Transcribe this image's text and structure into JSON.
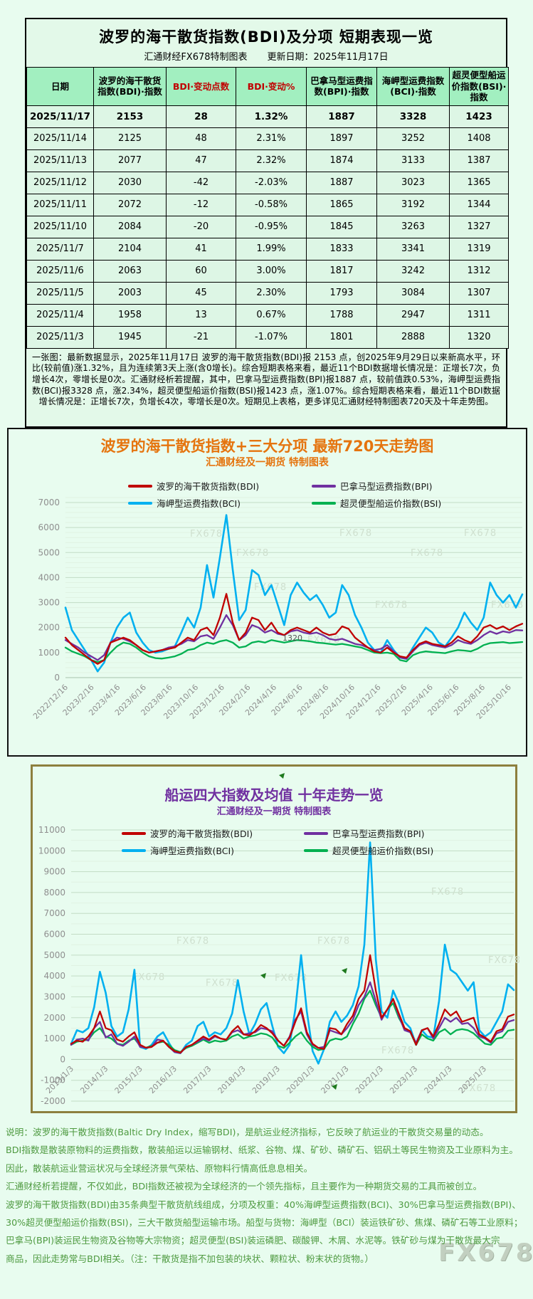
{
  "page": {
    "watermark": "FX678"
  },
  "table_section": {
    "title": "波罗的海干散货指数(BDI)及分项 短期表现一览",
    "subtitle_left": "汇通财经FX678特制图表",
    "subtitle_right": "更新日期：2025年11月17日",
    "columns": [
      "日期",
      "波罗的海干散货指数(BDI)·指数",
      "BDI·变动点数",
      "BDI·变动%",
      "巴拿马型运费指数(BPI)·指数",
      "海岬型运费指数(BCI)·指数",
      "超灵便型船运价指数(BSI)·指数"
    ],
    "red_columns": [
      2,
      3
    ],
    "rows": [
      [
        "2025/11/17",
        "2153",
        "28",
        "1.32%",
        "1887",
        "3328",
        "1423"
      ],
      [
        "2025/11/14",
        "2125",
        "48",
        "2.31%",
        "1897",
        "3252",
        "1408"
      ],
      [
        "2025/11/13",
        "2077",
        "47",
        "2.32%",
        "1874",
        "3133",
        "1387"
      ],
      [
        "2025/11/12",
        "2030",
        "-42",
        "-2.03%",
        "1887",
        "3023",
        "1365"
      ],
      [
        "2025/11/11",
        "2072",
        "-12",
        "-0.58%",
        "1865",
        "3192",
        "1344"
      ],
      [
        "2025/11/10",
        "2084",
        "-20",
        "-0.95%",
        "1845",
        "3263",
        "1327"
      ],
      [
        "2025/11/7",
        "2104",
        "41",
        "1.99%",
        "1833",
        "3341",
        "1319"
      ],
      [
        "2025/11/6",
        "2063",
        "60",
        "3.00%",
        "1817",
        "3242",
        "1312"
      ],
      [
        "2025/11/5",
        "2003",
        "45",
        "2.30%",
        "1793",
        "3084",
        "1307"
      ],
      [
        "2025/11/4",
        "1958",
        "13",
        "0.67%",
        "1788",
        "2947",
        "1311"
      ],
      [
        "2025/11/3",
        "1945",
        "-21",
        "-1.07%",
        "1801",
        "2888",
        "1320"
      ]
    ],
    "summary": "一张图：最新数据显示，2025年11月17日 波罗的海干散货指数(BDI)报 2153 点，创2025年9月29日以来新高水平，环比(较前值)涨1.32%，且为连续第3天上涨(含0增长)。综合短期表格来看，最近11个BDI数据增长情况是：正增长7次，负增长4次，零增长是0次。汇通财经析若提醒，其中，巴拿马型运费指数(BPI)报1887 点，较前值跌0.53%，海岬型运费指数(BCI)报3328 点，涨2.34%，超灵便型船运价指数(BSI)报1423 点，涨1.07%。综合短期表格来看，最近11个BDI数据增长情况是：正增长7次，负增长4次，零增长是0次。短期见上表格，更多详见汇通财经特制图表720天及十年走势图。"
  },
  "chart_data": [
    {
      "type": "line",
      "title": "波罗的海干散货指数+三大分项  最新720天走势图",
      "subtitle": "汇通财经及一期货  特制图表",
      "title_color": "#e5740e",
      "xlabel": "",
      "ylabel": "",
      "ylim": [
        0,
        7300
      ],
      "yticks": [
        0,
        1000,
        2000,
        3000,
        4000,
        5000,
        6000,
        7000
      ],
      "grid": true,
      "legend_position": "top",
      "annotation": "1320",
      "x_labels": [
        "2022/12/16",
        "2023/2/16",
        "2023/4/16",
        "2023/6/16",
        "2023/8/16",
        "2023/10/16",
        "2023/12/16",
        "2024/2/16",
        "2024/4/16",
        "2024/6/16",
        "2024/8/16",
        "2024/10/16",
        "2024/12/16",
        "2025/2/16",
        "2025/4/16",
        "2025/6/16",
        "2025/8/16",
        "2025/10/16"
      ],
      "series": [
        {
          "key": "BDI",
          "name": "波罗的海干散货指数(BDI)",
          "color": "#c00000",
          "values": [
            1600,
            1300,
            1100,
            900,
            700,
            550,
            700,
            1400,
            1500,
            1600,
            1500,
            1300,
            1100,
            1000,
            1050,
            1100,
            1150,
            1200,
            1400,
            1600,
            1500,
            1900,
            2000,
            1700,
            2400,
            3350,
            2200,
            1500,
            1800,
            2400,
            2300,
            1900,
            2200,
            1800,
            1700,
            1900,
            2000,
            1900,
            1800,
            2000,
            1800,
            1700,
            1750,
            2050,
            1950,
            1600,
            1400,
            1200,
            1050,
            1000,
            1200,
            1000,
            850,
            800,
            1100,
            1350,
            1450,
            1350,
            1300,
            1250,
            1400,
            1650,
            1500,
            1400,
            1650,
            2000,
            2100,
            1950,
            2050,
            1900,
            2050,
            2153
          ]
        },
        {
          "key": "BPI",
          "name": "巴拿马型运费指数(BPI)",
          "color": "#7030a0",
          "values": [
            1500,
            1350,
            1200,
            1000,
            850,
            700,
            900,
            1400,
            1600,
            1550,
            1450,
            1300,
            1100,
            1000,
            1050,
            1100,
            1200,
            1250,
            1350,
            1500,
            1450,
            1650,
            1700,
            1550,
            2000,
            2500,
            2100,
            1500,
            1700,
            2100,
            2000,
            1800,
            1900,
            1750,
            1700,
            1850,
            1900,
            1800,
            1750,
            1800,
            1700,
            1550,
            1500,
            1550,
            1450,
            1350,
            1300,
            1200,
            1100,
            1150,
            1300,
            1050,
            800,
            750,
            1050,
            1300,
            1400,
            1300,
            1250,
            1200,
            1300,
            1500,
            1400,
            1350,
            1500,
            1700,
            1850,
            1750,
            1850,
            1800,
            1900,
            1887
          ]
        },
        {
          "key": "BCI",
          "name": "海岬型运费指数(BCI)",
          "color": "#00b0f0",
          "values": [
            2800,
            1900,
            1500,
            1100,
            700,
            250,
            600,
            1400,
            2000,
            2400,
            2600,
            1800,
            1400,
            1100,
            1000,
            1050,
            1150,
            1250,
            1800,
            2400,
            2000,
            2800,
            4500,
            3200,
            4800,
            6500,
            4300,
            2300,
            2700,
            4300,
            4100,
            3300,
            3700,
            2900,
            2100,
            3300,
            3800,
            3400,
            3100,
            3300,
            2900,
            2400,
            2600,
            3700,
            3300,
            2500,
            2000,
            1400,
            1100,
            1000,
            1500,
            1100,
            800,
            750,
            1200,
            1600,
            2000,
            1800,
            1400,
            1250,
            1600,
            2000,
            2600,
            2200,
            1900,
            2400,
            3800,
            3300,
            3000,
            3300,
            2800,
            3328
          ]
        },
        {
          "key": "BSI",
          "name": "超灵便型船运价指数(BSI)",
          "color": "#00b050",
          "values": [
            1200,
            1050,
            950,
            850,
            700,
            620,
            700,
            1000,
            1250,
            1400,
            1350,
            1200,
            1000,
            850,
            780,
            760,
            800,
            850,
            950,
            1100,
            1150,
            1300,
            1400,
            1350,
            1450,
            1500,
            1400,
            1200,
            1250,
            1400,
            1450,
            1400,
            1500,
            1450,
            1400,
            1450,
            1500,
            1480,
            1450,
            1400,
            1380,
            1350,
            1320,
            1350,
            1300,
            1250,
            1200,
            1100,
            1000,
            980,
            1000,
            950,
            700,
            650,
            900,
            1000,
            1050,
            1020,
            1000,
            980,
            1050,
            1100,
            1080,
            1050,
            1150,
            1300,
            1380,
            1400,
            1420,
            1380,
            1400,
            1423
          ]
        }
      ]
    },
    {
      "type": "line",
      "title": "船运四大指数及均值 十年走势一览",
      "subtitle": "汇通财经及一期货 特制图表",
      "title_color": "#7030a0",
      "xlabel": "",
      "ylabel": "",
      "ylim": [
        -2000,
        11000
      ],
      "yticks": [
        -2000,
        -1000,
        0,
        1000,
        2000,
        3000,
        4000,
        5000,
        6000,
        7000,
        8000,
        9000,
        10000,
        11000
      ],
      "grid": true,
      "legend_position": "top",
      "x_labels": [
        "2013/1/3",
        "2014/1/3",
        "2015/1/3",
        "2016/1/3",
        "2017/1/3",
        "2018/1/3",
        "2019/1/3",
        "2020/1/3",
        "2021/1/3",
        "2022/1/3",
        "2023/1/3",
        "2024/1/3",
        "2025/1/3"
      ],
      "series": [
        {
          "key": "BDI",
          "name": "波罗的海干散货指数(BDI)",
          "color": "#c00000",
          "values": [
            750,
            900,
            850,
            1100,
            1500,
            2300,
            1500,
            1400,
            950,
            850,
            1100,
            1300,
            700,
            560,
            600,
            800,
            900,
            600,
            400,
            320,
            600,
            700,
            900,
            1100,
            950,
            1150,
            1000,
            950,
            1350,
            1600,
            1200,
            1150,
            1350,
            1650,
            1500,
            1250,
            900,
            650,
            1050,
            1800,
            2450,
            1300,
            750,
            550,
            500,
            1500,
            1450,
            1200,
            1700,
            2100,
            2900,
            3300,
            5000,
            3300,
            2000,
            2400,
            2900,
            2200,
            1500,
            1350,
            700,
            1400,
            1500,
            1100,
            1700,
            2400,
            2100,
            2300,
            1800,
            1900,
            2000,
            1200,
            1050,
            850,
            1350,
            1450,
            2050,
            2153
          ]
        },
        {
          "key": "BPI",
          "name": "巴拿马型运费指数(BPI)",
          "color": "#7030a0",
          "values": [
            700,
            950,
            1000,
            900,
            1500,
            1800,
            1050,
            1200,
            750,
            650,
            850,
            1100,
            600,
            560,
            600,
            950,
            900,
            600,
            350,
            300,
            600,
            700,
            850,
            1000,
            900,
            1100,
            1000,
            950,
            1300,
            1400,
            1200,
            1250,
            1300,
            1500,
            1450,
            1350,
            900,
            650,
            1100,
            1900,
            2300,
            1200,
            700,
            550,
            600,
            1400,
            1300,
            1200,
            1500,
            1900,
            2600,
            3000,
            3700,
            2800,
            1900,
            2400,
            2900,
            2100,
            1400,
            1300,
            800,
            1400,
            1500,
            1000,
            1500,
            2000,
            1800,
            2000,
            1700,
            1750,
            1500,
            1100,
            1000,
            800,
            1250,
            1350,
            1800,
            1887
          ]
        },
        {
          "key": "BCI",
          "name": "海岬型运费指数(BCI)",
          "color": "#00b0f0",
          "values": [
            750,
            1400,
            1300,
            1500,
            2500,
            4200,
            3200,
            1600,
            1100,
            1300,
            2400,
            4300,
            600,
            500,
            700,
            1100,
            1300,
            800,
            350,
            300,
            700,
            900,
            1600,
            1800,
            1100,
            1300,
            1200,
            1500,
            2200,
            3800,
            2300,
            1200,
            1700,
            2400,
            2700,
            1600,
            600,
            300,
            700,
            2400,
            5000,
            2300,
            400,
            -200,
            500,
            1800,
            2300,
            1800,
            2100,
            2600,
            3500,
            5500,
            10400,
            4800,
            2300,
            2000,
            3300,
            2700,
            1800,
            1500,
            700,
            1400,
            1100,
            1050,
            2800,
            5500,
            4300,
            4100,
            3700,
            3300,
            3700,
            1400,
            1100,
            1300,
            1800,
            2300,
            3600,
            3328
          ]
        },
        {
          "key": "BSI",
          "name": "超灵便型船运价指数(BSI)",
          "color": "#00b050",
          "values": [
            700,
            850,
            900,
            950,
            1300,
            1500,
            1100,
            1000,
            750,
            700,
            900,
            1000,
            650,
            560,
            650,
            800,
            850,
            700,
            450,
            350,
            550,
            650,
            800,
            950,
            800,
            900,
            850,
            900,
            1100,
            1200,
            1000,
            1100,
            1150,
            1250,
            1200,
            1050,
            650,
            550,
            800,
            1100,
            1300,
            900,
            600,
            450,
            500,
            900,
            1000,
            950,
            1100,
            1700,
            2200,
            2900,
            3300,
            2600,
            2000,
            2400,
            2700,
            2000,
            1500,
            1300,
            700,
            1200,
            1000,
            900,
            1300,
            1450,
            1200,
            1400,
            1450,
            1400,
            1250,
            1000,
            750,
            700,
            1000,
            1050,
            1380,
            1423
          ]
        }
      ]
    }
  ],
  "footer": {
    "lines": [
      "说明：波罗的海干散货指数(Baltic Dry Index，缩写BDI)，是航运业经济指标，它反映了航运业的干散货交易量的动态。",
      "BDI指数是散装原物料的运费指数，散装船运以运输钢材、纸浆、谷物、煤、矿砂、磷矿石、铝矾土等民生物资及工业原料为主。",
      "因此，散装航运业营运状况与全球经济景气荣枯、原物料行情高低息息相关。",
      "汇通财经析若提醒，不仅如此，BDI指数还被视为全球经济的一个领先指标，且主要作为一种期货交易的工具而被创立。",
      "波罗的海干散货指数(BDI)由35条典型干散货航线组成，分项及权重：40%海岬型运费指数(BCI)、30%巴拿马型运费指数(BPI)、",
      "30%超灵便型船运价指数(BSI)，三大干散货船型运输市场。船型与货物：海岬型（BCI）装运铁矿砂、焦煤、磷矿石等工业原料；",
      "巴拿马(BPI)装运民生物资及谷物等大宗物资；超灵便型(BSI)装运磷肥、碳酸钾、木屑、水泥等。铁矿砂与煤为干散货最大宗",
      "商品，因此走势常与BDI相关。（注：干散货是指不加包装的块状、颗粒状、粉末状的货物。）"
    ]
  }
}
